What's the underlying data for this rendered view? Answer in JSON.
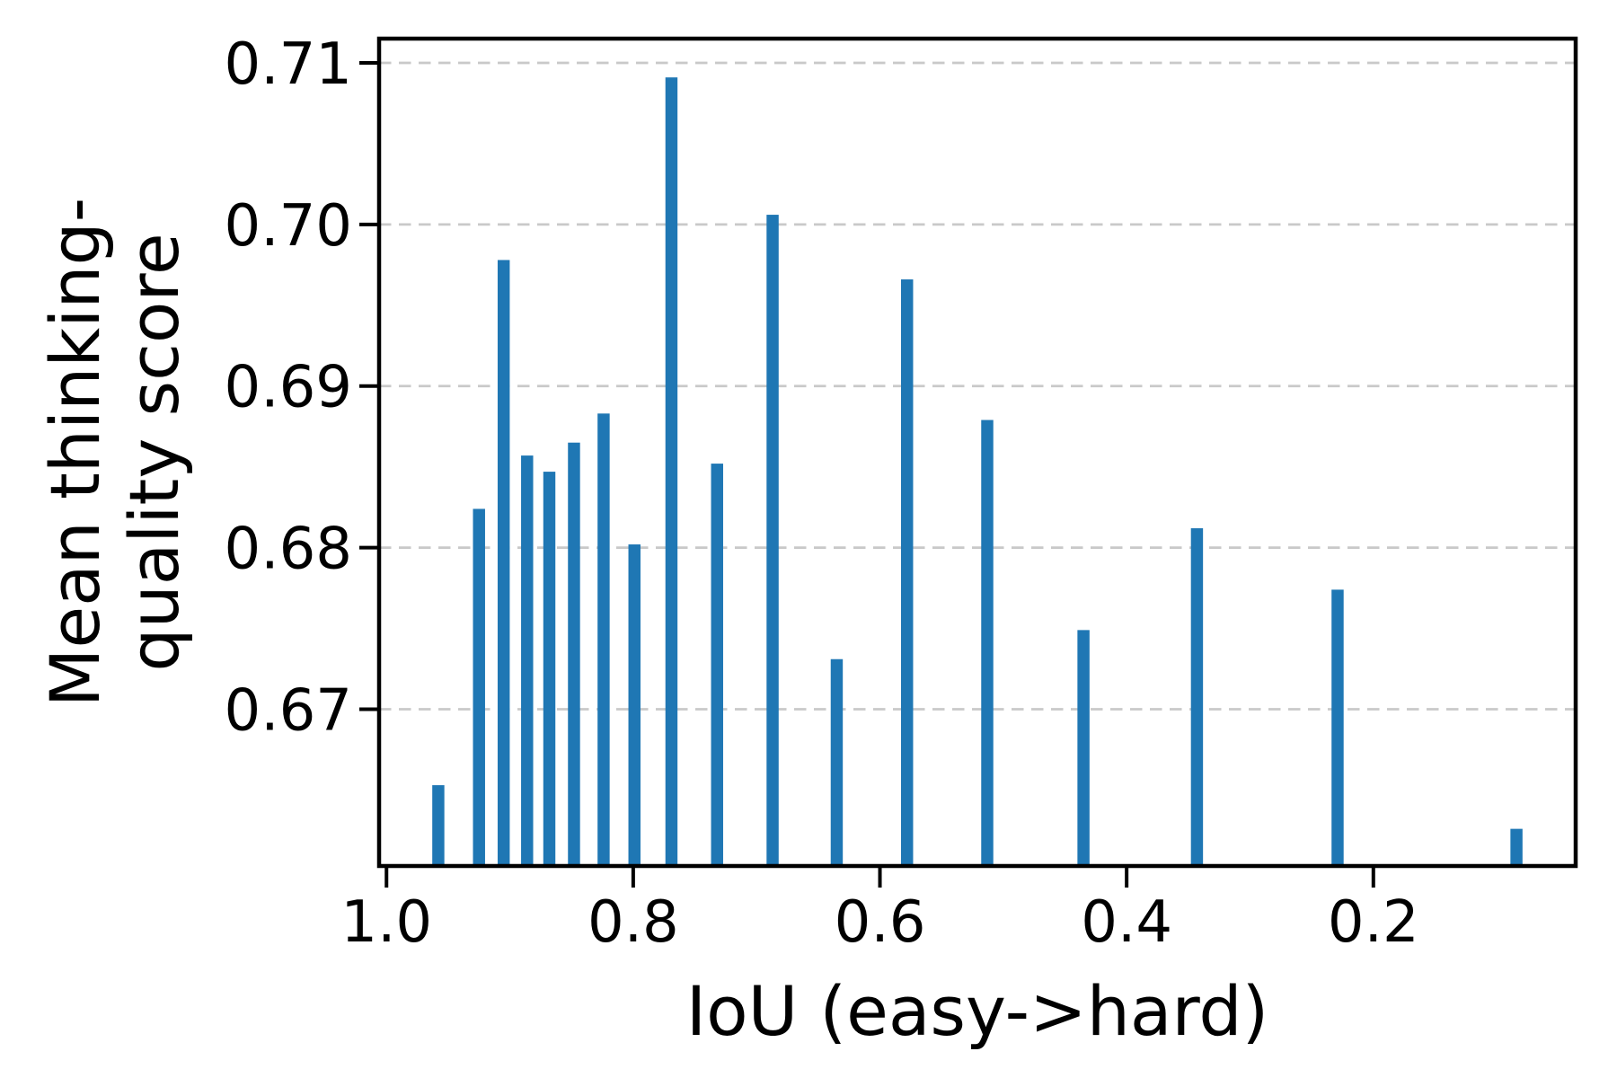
{
  "chart_data": {
    "type": "bar",
    "title": "",
    "xlabel": "IoU (easy->hard)",
    "ylabel_lines": [
      "Mean thinking-",
      "quality score"
    ],
    "ylabel_full": "Mean thinking-quality score",
    "x_tick_labels": [
      "1.0",
      "0.8",
      "0.6",
      "0.4",
      "0.2"
    ],
    "x_tick_values": [
      1.0,
      0.8,
      0.6,
      0.4,
      0.2
    ],
    "y_tick_labels": [
      "0.67",
      "0.68",
      "0.69",
      "0.70",
      "0.71"
    ],
    "y_tick_values": [
      0.67,
      0.68,
      0.69,
      0.7,
      0.71
    ],
    "xlim": [
      1.006,
      0.036
    ],
    "ylim": [
      0.6603,
      0.7115
    ],
    "x_axis_reversed": true,
    "grid": {
      "axis": "y",
      "style": "dashed",
      "color": "#c9c9c9"
    },
    "bar_color": "#1f77b4",
    "axis_color": "#000000",
    "background_color": "#ffffff",
    "bar_width_in_x_units": 0.0098,
    "points": [
      {
        "iou": 0.958,
        "score": 0.6653
      },
      {
        "iou": 0.925,
        "score": 0.6824
      },
      {
        "iou": 0.905,
        "score": 0.6978
      },
      {
        "iou": 0.886,
        "score": 0.6857
      },
      {
        "iou": 0.868,
        "score": 0.6847
      },
      {
        "iou": 0.848,
        "score": 0.6865
      },
      {
        "iou": 0.824,
        "score": 0.6883
      },
      {
        "iou": 0.799,
        "score": 0.6802
      },
      {
        "iou": 0.769,
        "score": 0.7091
      },
      {
        "iou": 0.732,
        "score": 0.6852
      },
      {
        "iou": 0.687,
        "score": 0.7006
      },
      {
        "iou": 0.635,
        "score": 0.6731
      },
      {
        "iou": 0.578,
        "score": 0.6966
      },
      {
        "iou": 0.513,
        "score": 0.6879
      },
      {
        "iou": 0.435,
        "score": 0.6749
      },
      {
        "iou": 0.343,
        "score": 0.6812
      },
      {
        "iou": 0.229,
        "score": 0.6774
      },
      {
        "iou": 0.084,
        "score": 0.6626
      }
    ]
  }
}
